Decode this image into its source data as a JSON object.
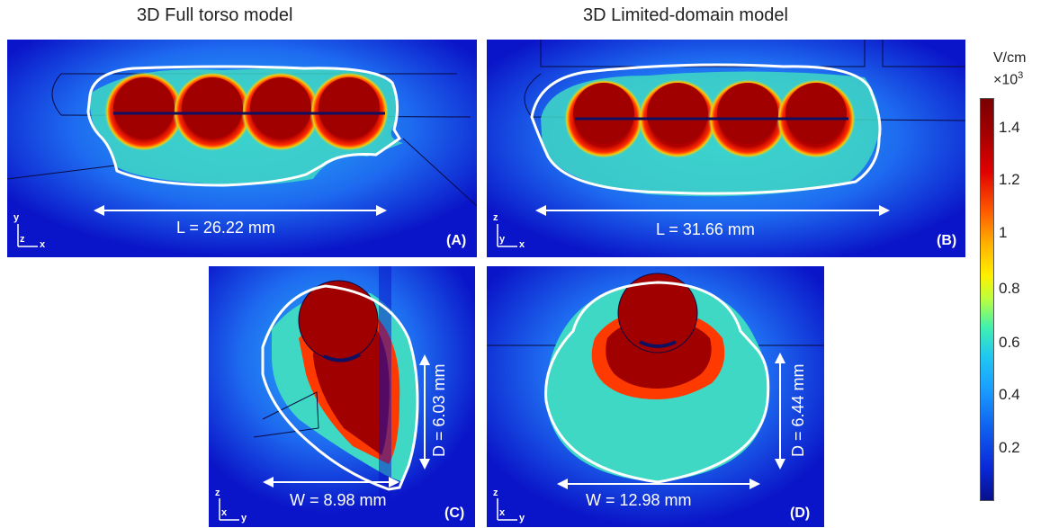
{
  "titles": {
    "left": "3D Full torso model",
    "right": "3D Limited-domain model"
  },
  "panels": {
    "A": {
      "label": "(A)",
      "measure": "L = 26.22 mm",
      "axis_v": "y",
      "axis_h": "x",
      "axis_o": "z"
    },
    "B": {
      "label": "(B)",
      "measure": "L = 31.66 mm",
      "axis_v": "z",
      "axis_h": "x",
      "axis_o": "y"
    },
    "C": {
      "label": "(C)",
      "measure_w": "W = 8.98 mm",
      "measure_d": "D = 6.03 mm",
      "axis_v": "z",
      "axis_h": "y",
      "axis_o": "x"
    },
    "D": {
      "label": "(D)",
      "measure_w": "W = 12.98 mm",
      "measure_d": "D = 6.44 mm",
      "axis_v": "z",
      "axis_h": "y",
      "axis_o": "x"
    }
  },
  "colorbar": {
    "unit_line1": "V/cm",
    "unit_line2": "×10",
    "unit_exp": "3",
    "ticks": [
      "1.4",
      "1.2",
      "1",
      "0.8",
      "0.6",
      "0.4",
      "0.2"
    ]
  }
}
